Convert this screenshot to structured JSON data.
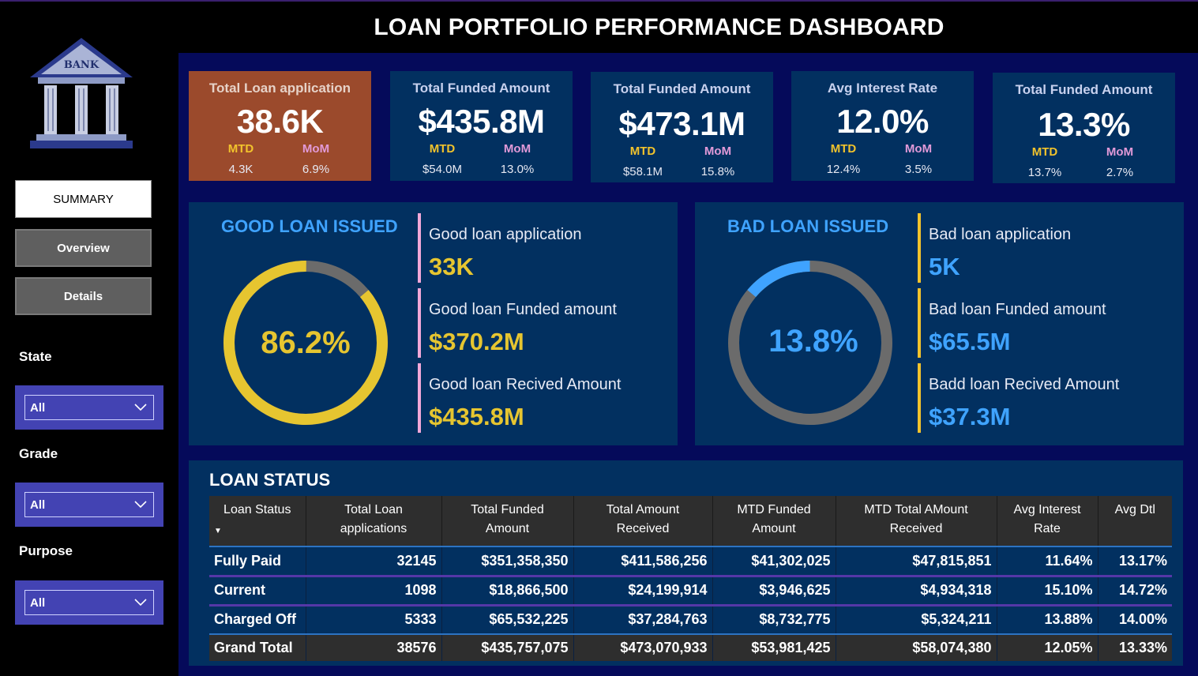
{
  "title": "LOAN PORTFOLIO PERFORMANCE DASHBOARD",
  "logo": {
    "text": "BANK"
  },
  "nav": {
    "summary": "SUMMARY",
    "overview": "Overview",
    "details": "Details"
  },
  "filters": {
    "state": {
      "label": "State",
      "value": "All"
    },
    "grade": {
      "label": "Grade",
      "value": "All"
    },
    "purpose": {
      "label": "Purpose",
      "value": "All"
    }
  },
  "kpis": [
    {
      "label": "Total Loan application",
      "value": "38.6K",
      "mtd_label": "MTD",
      "mom_label": "MoM",
      "mtd": "4.3K",
      "mom": "6.9%"
    },
    {
      "label": "Total Funded Amount",
      "value": "$435.8M",
      "mtd_label": "MTD",
      "mom_label": "MoM",
      "mtd": "$54.0M",
      "mom": "13.0%"
    },
    {
      "label": "Total Funded Amount",
      "value": "$473.1M",
      "mtd_label": "MTD",
      "mom_label": "MoM",
      "mtd": "$58.1M",
      "mom": "15.8%"
    },
    {
      "label": "Avg Interest Rate",
      "value": "12.0%",
      "mtd_label": "MTD",
      "mom_label": "MoM",
      "mtd": "12.4%",
      "mom": "3.5%"
    },
    {
      "label": "Total Funded Amount",
      "value": "13.3%",
      "mtd_label": "MTD",
      "mom_label": "MoM",
      "mtd": "13.7%",
      "mom": "2.7%"
    }
  ],
  "good_loan": {
    "title": "GOOD LOAN ISSUED",
    "percent_label": "86.2%",
    "percent": 86.2,
    "metrics": [
      {
        "label": "Good loan application",
        "value": "33K"
      },
      {
        "label": "Good loan Funded amount",
        "value": "$370.2M"
      },
      {
        "label": "Good loan Recived Amount",
        "value": "$435.8M"
      }
    ]
  },
  "bad_loan": {
    "title": "BAD LOAN ISSUED",
    "percent_label": "13.8%",
    "percent": 13.8,
    "metrics": [
      {
        "label": "Bad loan application",
        "value": "5K"
      },
      {
        "label": "Bad loan Funded amount",
        "value": "$65.5M"
      },
      {
        "label": "Badd loan Recived Amount",
        "value": "$37.3M"
      }
    ]
  },
  "colors": {
    "good_accent": "#e6c530",
    "bad_accent": "#3fa3ff",
    "ring_rest": "#6b6b6b",
    "good_bar": "#f2a8d8",
    "bad_bar": "#f2c32c"
  },
  "loan_status": {
    "title": "LOAN STATUS",
    "headers": [
      [
        "Loan Status"
      ],
      [
        "Total Loan",
        "applications"
      ],
      [
        "Total Funded",
        "Amount"
      ],
      [
        "Total Amount",
        "Received"
      ],
      [
        "MTD Funded",
        "Amount"
      ],
      [
        "MTD Total AMount",
        "Received"
      ],
      [
        "Avg Interest",
        "Rate"
      ],
      [
        "Avg Dtl"
      ]
    ],
    "rows": [
      [
        "Fully Paid",
        "32145",
        "$351,358,350",
        "$411,586,256",
        "$41,302,025",
        "$47,815,851",
        "11.64%",
        "13.17%"
      ],
      [
        "Current",
        "1098",
        "$18,866,500",
        "$24,199,914",
        "$3,946,625",
        "$4,934,318",
        "15.10%",
        "14.72%"
      ],
      [
        "Charged Off",
        "5333",
        "$65,532,225",
        "$37,284,763",
        "$8,732,775",
        "$5,324,211",
        "13.88%",
        "14.00%"
      ]
    ],
    "total": [
      "Grand Total",
      "38576",
      "$435,757,075",
      "$473,070,933",
      "$53,981,425",
      "$58,074,380",
      "12.05%",
      "13.33%"
    ]
  }
}
